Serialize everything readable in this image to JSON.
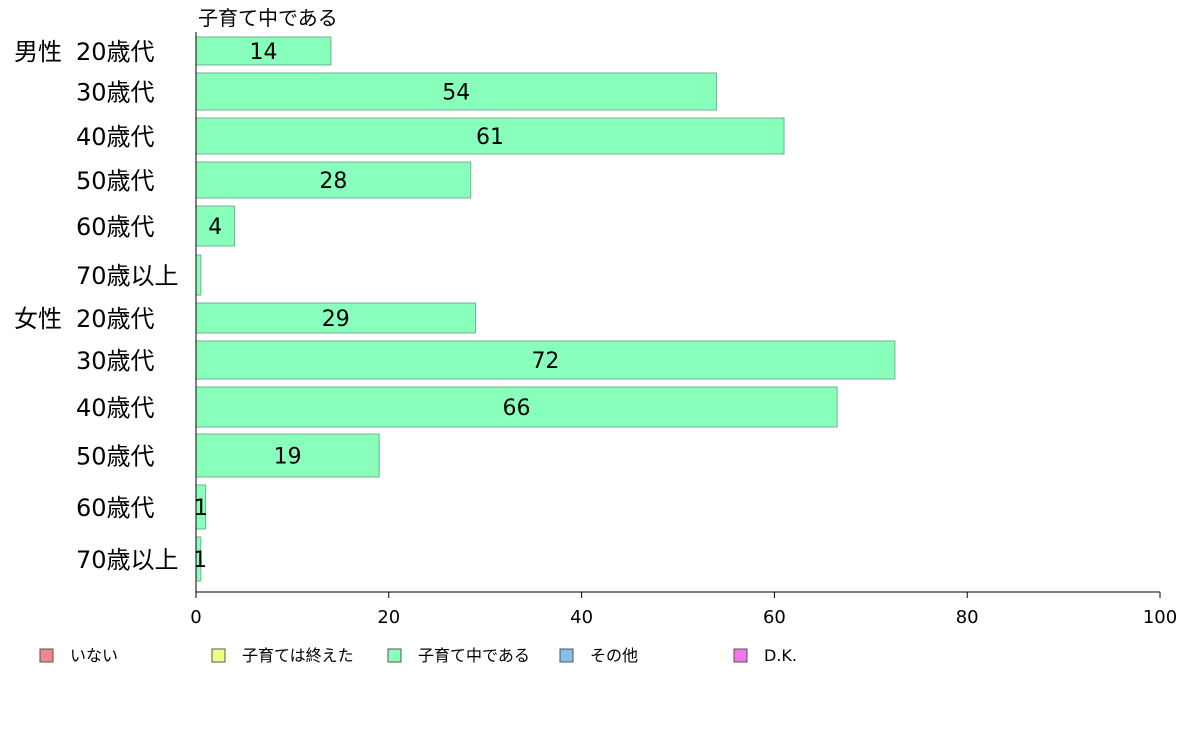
{
  "chart_data": {
    "type": "bar",
    "orientation": "horizontal",
    "title": "子育て中である",
    "groups": [
      {
        "name": "男性",
        "categories": [
          "20歳代",
          "30歳代",
          "40歳代",
          "50歳代",
          "60歳代",
          "70歳以上"
        ]
      },
      {
        "name": "女性",
        "categories": [
          "20歳代",
          "30歳代",
          "40歳代",
          "50歳代",
          "60歳代",
          "70歳以上"
        ]
      }
    ],
    "series": [
      {
        "name": "子育て中である",
        "color": "#88ffbb",
        "values": [
          14,
          54,
          61,
          28.5,
          4,
          0.5,
          29,
          72.5,
          66.5,
          19,
          1,
          0.5
        ],
        "labels": [
          "14",
          "54",
          "61",
          "28",
          "4",
          "",
          "29",
          "72",
          "66",
          "19",
          "1",
          "1"
        ]
      }
    ],
    "xlim": [
      0,
      100
    ],
    "xticks": [
      0,
      20,
      40,
      60,
      80,
      100
    ],
    "grid": false,
    "legend": {
      "placement": "bottom",
      "items": [
        {
          "label": "いない",
          "color": "#f08888"
        },
        {
          "label": "子育ては終えた",
          "color": "#eeff88"
        },
        {
          "label": "子育て中である",
          "color": "#88ffbb"
        },
        {
          "label": "その他",
          "color": "#88bbee"
        },
        {
          "label": "D.K.",
          "color": "#ee77ee"
        }
      ]
    }
  }
}
